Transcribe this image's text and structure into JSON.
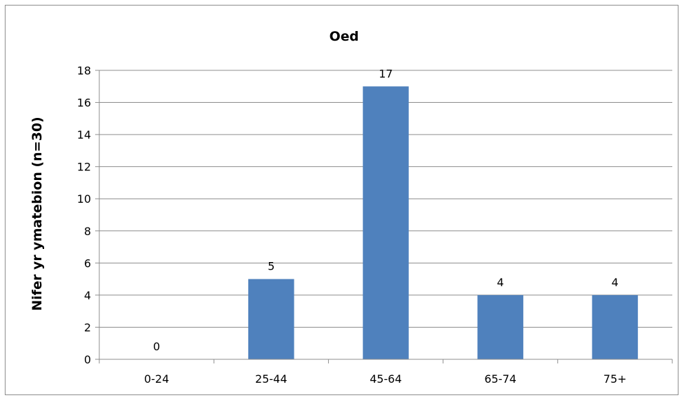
{
  "chart_data": {
    "type": "bar",
    "title": "Oed",
    "xlabel": "",
    "ylabel": "Nifer yr ymatebion (n=30)",
    "categories": [
      "0-24",
      "25-44",
      "45-64",
      "65-74",
      "75+"
    ],
    "values": [
      0,
      5,
      17,
      4,
      4
    ],
    "data_labels": [
      "0",
      "5",
      "17",
      "4",
      "4"
    ],
    "ylim": [
      0,
      18
    ],
    "yticks": [
      0,
      2,
      4,
      6,
      8,
      10,
      12,
      14,
      16,
      18
    ],
    "grid": true,
    "legend": "none",
    "bar_color": "#4f81bd",
    "gridline_color": "#8c8c8c"
  }
}
